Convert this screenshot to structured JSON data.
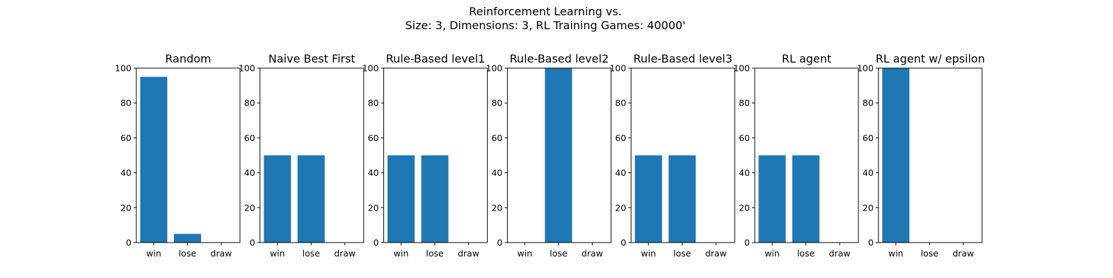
{
  "figure": {
    "title_line1": "Reinforcement Learning vs.",
    "title_line2": "Size: 3, Dimensions: 3, RL Training Games: 40000'"
  },
  "colors": {
    "bar": "#1f77b4",
    "axis": "#000000"
  },
  "chart_data": [
    {
      "type": "bar",
      "title": "Random",
      "categories": [
        "win",
        "lose",
        "draw"
      ],
      "values": [
        95,
        5,
        0
      ],
      "ylim": [
        0,
        100
      ],
      "yticks": [
        0,
        20,
        40,
        60,
        80,
        100
      ],
      "grid": false
    },
    {
      "type": "bar",
      "title": "Naive Best First",
      "categories": [
        "win",
        "lose",
        "draw"
      ],
      "values": [
        50,
        50,
        0
      ],
      "ylim": [
        0,
        100
      ],
      "yticks": [
        0,
        20,
        40,
        60,
        80,
        100
      ],
      "grid": false
    },
    {
      "type": "bar",
      "title": "Rule-Based level1",
      "categories": [
        "win",
        "lose",
        "draw"
      ],
      "values": [
        50,
        50,
        0
      ],
      "ylim": [
        0,
        100
      ],
      "yticks": [
        0,
        20,
        40,
        60,
        80,
        100
      ],
      "grid": false
    },
    {
      "type": "bar",
      "title": "Rule-Based level2",
      "categories": [
        "win",
        "lose",
        "draw"
      ],
      "values": [
        0,
        100,
        0
      ],
      "ylim": [
        0,
        100
      ],
      "yticks": [
        0,
        20,
        40,
        60,
        80,
        100
      ],
      "grid": false
    },
    {
      "type": "bar",
      "title": "Rule-Based level3",
      "categories": [
        "win",
        "lose",
        "draw"
      ],
      "values": [
        50,
        50,
        0
      ],
      "ylim": [
        0,
        100
      ],
      "yticks": [
        0,
        20,
        40,
        60,
        80,
        100
      ],
      "grid": false
    },
    {
      "type": "bar",
      "title": "RL agent",
      "categories": [
        "win",
        "lose",
        "draw"
      ],
      "values": [
        50,
        50,
        0
      ],
      "ylim": [
        0,
        100
      ],
      "yticks": [
        0,
        20,
        40,
        60,
        80,
        100
      ],
      "grid": false
    },
    {
      "type": "bar",
      "title": "RL agent w/ epsilon",
      "categories": [
        "win",
        "lose",
        "draw"
      ],
      "values": [
        100,
        0,
        0
      ],
      "ylim": [
        0,
        100
      ],
      "yticks": [
        0,
        20,
        40,
        60,
        80,
        100
      ],
      "grid": false
    }
  ]
}
